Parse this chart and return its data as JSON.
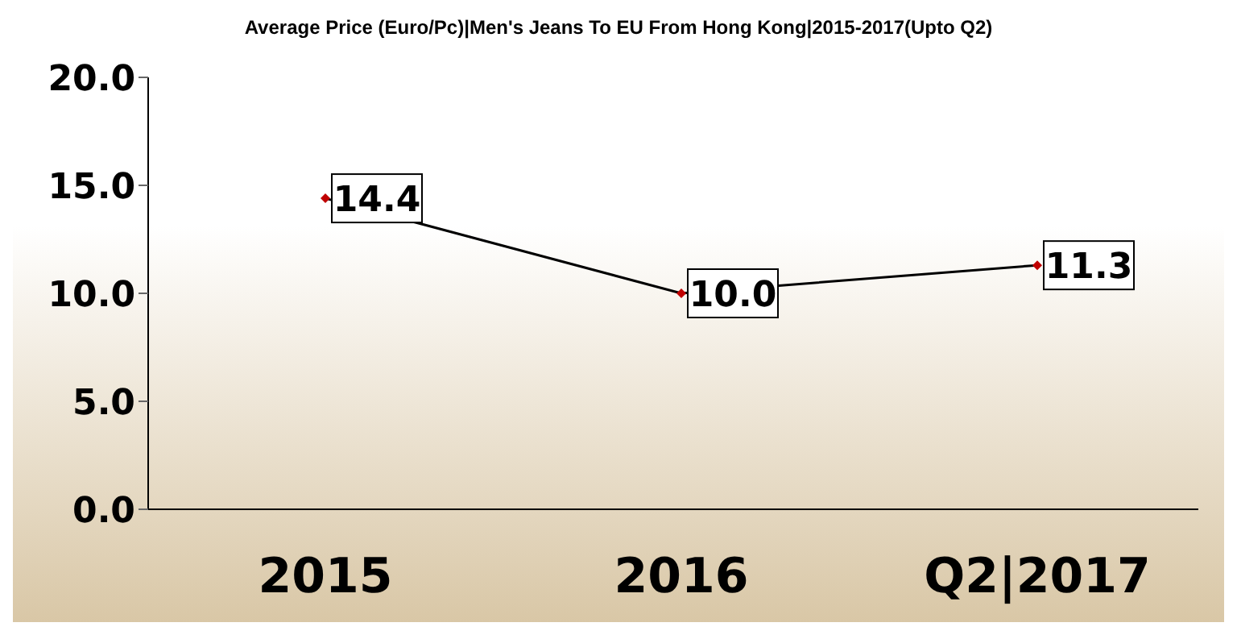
{
  "chart_data": {
    "type": "line",
    "title": "Average Price (Euro/Pc)|Men's Jeans To EU From Hong Kong|2015-2017(Upto Q2)",
    "categories": [
      "2015",
      "2016",
      "Q2|2017"
    ],
    "series": [
      {
        "color": "#000000",
        "colors": [
          "#c00000",
          "#c00000",
          "#c00000"
        ],
        "values": [
          14.4,
          10.0,
          11.3
        ],
        "value_labels": [
          "14.4",
          "10.0",
          "11.3"
        ]
      }
    ],
    "ylim": [
      0,
      20
    ],
    "yticks": [
      {
        "value": 0,
        "label": "0.0"
      },
      {
        "value": 5,
        "label": "5.0"
      },
      {
        "value": 10,
        "label": "10.0"
      },
      {
        "value": 15,
        "label": "15.0"
      },
      {
        "value": 20,
        "label": "20.0"
      }
    ],
    "grid": false,
    "legend": false,
    "marker": "diamond",
    "line_style": "solid"
  }
}
